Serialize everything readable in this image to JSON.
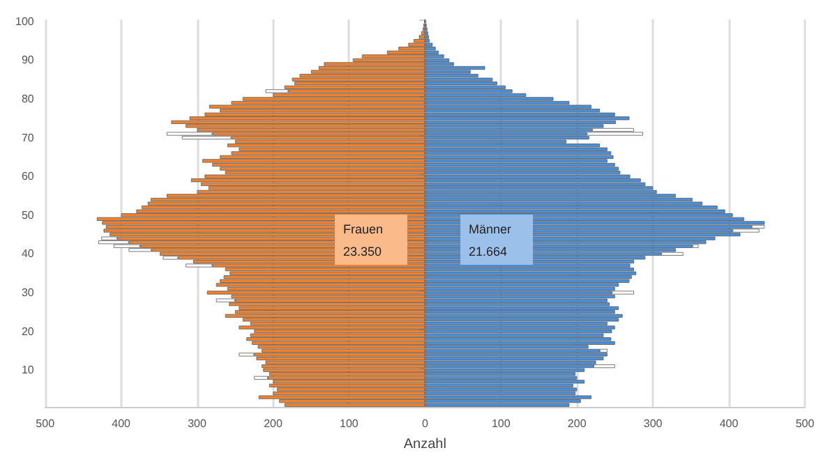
{
  "chart_data": {
    "type": "bar",
    "orientation": "horizontal",
    "stacked": true,
    "xlabel": "Anzahl",
    "categories": [
      "100",
      null,
      null,
      null,
      null,
      null,
      null,
      null,
      null,
      null,
      "90",
      null,
      null,
      null,
      null,
      null,
      null,
      null,
      null,
      null,
      "80",
      null,
      null,
      null,
      null,
      null,
      null,
      null,
      null,
      null,
      "70",
      null,
      null,
      null,
      null,
      null,
      null,
      null,
      null,
      null,
      "60",
      null,
      null,
      null,
      null,
      null,
      null,
      null,
      null,
      null,
      "50",
      null,
      null,
      null,
      null,
      null,
      null,
      null,
      null,
      null,
      "40",
      null,
      null,
      null,
      null,
      null,
      null,
      null,
      null,
      null,
      "30",
      null,
      null,
      null,
      null,
      null,
      null,
      null,
      null,
      null,
      "20",
      null,
      null,
      null,
      null,
      null,
      null,
      null,
      null,
      null,
      "10",
      null,
      null,
      null,
      null,
      null,
      null,
      null,
      null,
      null
    ],
    "series": [
      {
        "color": "#f5822a",
        "values": [
          -1,
          -2,
          -3,
          -5,
          -8,
          -15,
          -22,
          -35,
          -50,
          -83,
          -95,
          -133,
          -140,
          -150,
          -165,
          -175,
          -172,
          -185,
          -180,
          -200,
          -240,
          -255,
          -284,
          -270,
          -290,
          -310,
          -334,
          -315,
          -300,
          -280,
          -255,
          -250,
          -260,
          -245,
          -255,
          -270,
          -293,
          -280,
          -270,
          -263,
          -290,
          -308,
          -295,
          -285,
          -300,
          -340,
          -361,
          -365,
          -373,
          -380,
          -400,
          -432,
          -425,
          -420,
          -423,
          -415,
          -405,
          -390,
          -375,
          -360,
          -349,
          -325,
          -305,
          -280,
          -263,
          -257,
          -265,
          -270,
          -275,
          -260,
          -287,
          -255,
          -250,
          -258,
          -245,
          -250,
          -263,
          -240,
          -230,
          -245,
          -225,
          -230,
          -235,
          -228,
          -220,
          -215,
          -225,
          -222,
          -210,
          -215,
          -213,
          -205,
          -207,
          -200,
          -205,
          -195,
          -200,
          -219,
          -192,
          -185
        ]
      },
      {
        "color": "#4a8fd8",
        "values": [
          1,
          2,
          3,
          4,
          5,
          6,
          10,
          14,
          18,
          25,
          32,
          38,
          79,
          60,
          70,
          89,
          95,
          106,
          115,
          133,
          169,
          190,
          219,
          230,
          250,
          269,
          251,
          235,
          220,
          213,
          216,
          186,
          230,
          240,
          245,
          248,
          240,
          250,
          255,
          257,
          270,
          284,
          290,
          300,
          305,
          330,
          352,
          365,
          385,
          395,
          405,
          420,
          447,
          430,
          405,
          415,
          382,
          370,
          352,
          330,
          311,
          290,
          275,
          270,
          275,
          278,
          272,
          269,
          255,
          250,
          246,
          250,
          240,
          243,
          255,
          250,
          260,
          255,
          240,
          250,
          246,
          235,
          245,
          250,
          215,
          230,
          240,
          235,
          225,
          222,
          210,
          198,
          200,
          210,
          195,
          200,
          198,
          219,
          205,
          190
        ]
      },
      {
        "color": "#ffffff",
        "values": [
          null,
          null,
          null,
          null,
          null,
          null,
          null,
          null,
          null,
          null,
          null,
          null,
          null,
          null,
          null,
          null,
          null,
          null,
          -30,
          null,
          null,
          null,
          null,
          null,
          null,
          null,
          null,
          null,
          null,
          -60,
          -65,
          null,
          null,
          null,
          null,
          null,
          null,
          null,
          null,
          null,
          null,
          null,
          null,
          null,
          null,
          null,
          null,
          null,
          null,
          null,
          null,
          null,
          null,
          null,
          null,
          null,
          -21,
          -40,
          -35,
          -30,
          null,
          -20,
          null,
          -35,
          null,
          null,
          null,
          null,
          null,
          null,
          null,
          null,
          -25,
          null,
          null,
          null,
          null,
          null,
          null,
          null,
          null,
          null,
          null,
          null,
          null,
          null,
          -20,
          null,
          null,
          null,
          null,
          null,
          -18,
          null,
          null,
          null,
          null,
          null,
          null,
          null
        ]
      },
      {
        "color": "#ffffff",
        "values": [
          null,
          null,
          null,
          null,
          null,
          null,
          null,
          null,
          null,
          null,
          null,
          null,
          null,
          null,
          null,
          null,
          null,
          null,
          null,
          null,
          null,
          null,
          null,
          null,
          null,
          null,
          null,
          null,
          55,
          74,
          null,
          null,
          null,
          null,
          null,
          null,
          null,
          null,
          null,
          null,
          null,
          null,
          null,
          null,
          null,
          null,
          null,
          null,
          null,
          null,
          null,
          null,
          null,
          17,
          35,
          null,
          null,
          null,
          8,
          null,
          29,
          null,
          null,
          null,
          null,
          null,
          null,
          null,
          null,
          null,
          29,
          null,
          null,
          null,
          null,
          null,
          null,
          null,
          null,
          null,
          null,
          null,
          null,
          null,
          null,
          10,
          null,
          null,
          null,
          28,
          null,
          null,
          null,
          null,
          null,
          null,
          null,
          null,
          null,
          null
        ]
      }
    ],
    "xlim": [
      -500,
      500
    ],
    "xticks": [
      {
        "value": -500,
        "label": "500"
      },
      {
        "value": -400,
        "label": "400"
      },
      {
        "value": -300,
        "label": "300"
      },
      {
        "value": -200,
        "label": "200"
      },
      {
        "value": -100,
        "label": "100"
      },
      0,
      100,
      200,
      300,
      400,
      500
    ],
    "grid": "x",
    "annotations": [
      "Frauen",
      "23.350",
      "Männer",
      "21.664"
    ]
  }
}
